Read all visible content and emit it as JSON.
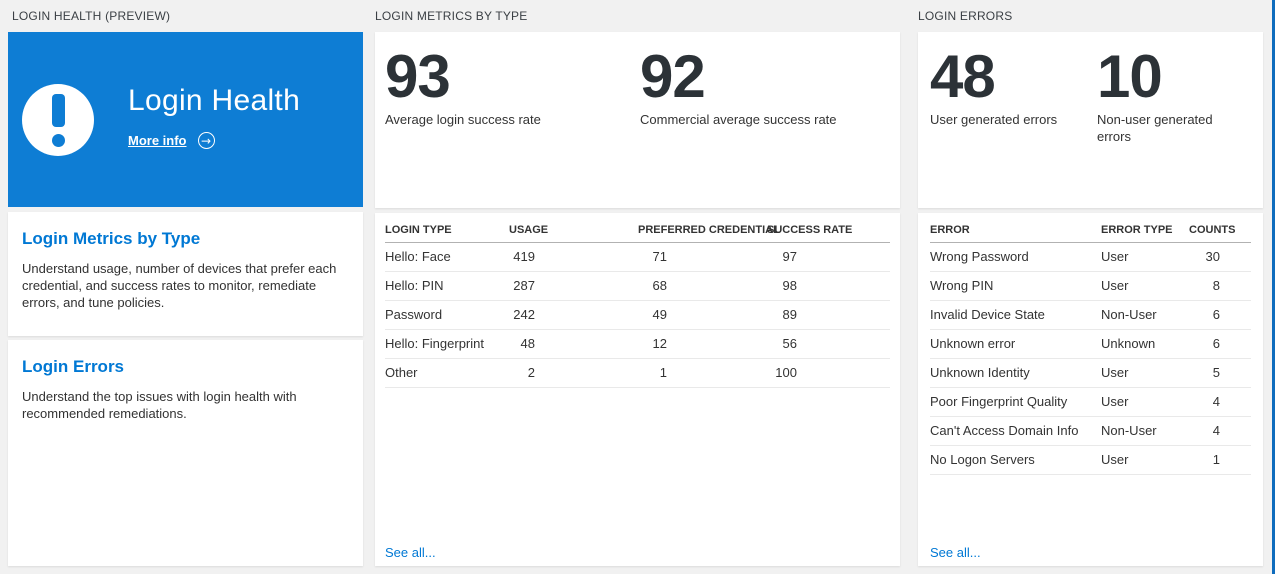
{
  "theme": {
    "page_bg": "#f1f1f1",
    "card_bg": "#ffffff",
    "hero_blue": "#0e7dd4",
    "link_blue": "#0078d4",
    "stat_text": "#2c3237",
    "edge_line_blue": "#0f6cbd"
  },
  "left": {
    "section_header": "LOGIN HEALTH (PREVIEW)",
    "hero": {
      "icon": "exclamation-icon",
      "title": "Login Health",
      "more_info": "More info",
      "arrow_icon": "arrow-right-circle-icon",
      "arrow_glyph": "→"
    },
    "cards": [
      {
        "title": "Login Metrics by Type",
        "description": "Understand usage, number of devices that prefer each credential, and success rates to monitor, remediate errors, and tune policies."
      },
      {
        "title": "Login Errors",
        "description": "Understand the top issues with login health with recommended remediations."
      }
    ]
  },
  "metrics": {
    "section_header": "LOGIN METRICS BY TYPE",
    "stats": [
      {
        "value": "93",
        "label": "Average login success rate"
      },
      {
        "value": "92",
        "label": "Commercial average success rate"
      }
    ],
    "table": {
      "headers": [
        "LOGIN TYPE",
        "USAGE",
        "PREFERRED CREDENTIAL",
        "SUCCESS RATE"
      ],
      "rows": [
        [
          "Hello: Face",
          "419",
          "71",
          "97"
        ],
        [
          "Hello: PIN",
          "287",
          "68",
          "98"
        ],
        [
          "Password",
          "242",
          "49",
          "89"
        ],
        [
          "Hello: Fingerprint",
          "48",
          "12",
          "56"
        ],
        [
          "Other",
          "2",
          "1",
          "100"
        ]
      ],
      "see_all": "See all..."
    }
  },
  "errors": {
    "section_header": "LOGIN ERRORS",
    "stats": [
      {
        "value": "48",
        "label": "User generated errors"
      },
      {
        "value": "10",
        "label": "Non-user generated errors"
      }
    ],
    "table": {
      "headers": [
        "ERROR",
        "ERROR TYPE",
        "COUNTS"
      ],
      "rows": [
        [
          "Wrong Password",
          "User",
          "30"
        ],
        [
          "Wrong PIN",
          "User",
          "8"
        ],
        [
          "Invalid Device State",
          "Non-User",
          "6"
        ],
        [
          "Unknown error",
          "Unknown",
          "6"
        ],
        [
          "Unknown Identity",
          "User",
          "5"
        ],
        [
          "Poor Fingerprint Quality",
          "User",
          "4"
        ],
        [
          "Can't Access Domain Info",
          "Non-User",
          "4"
        ],
        [
          "No Logon Servers",
          "User",
          "1"
        ]
      ],
      "see_all": "See all..."
    }
  }
}
